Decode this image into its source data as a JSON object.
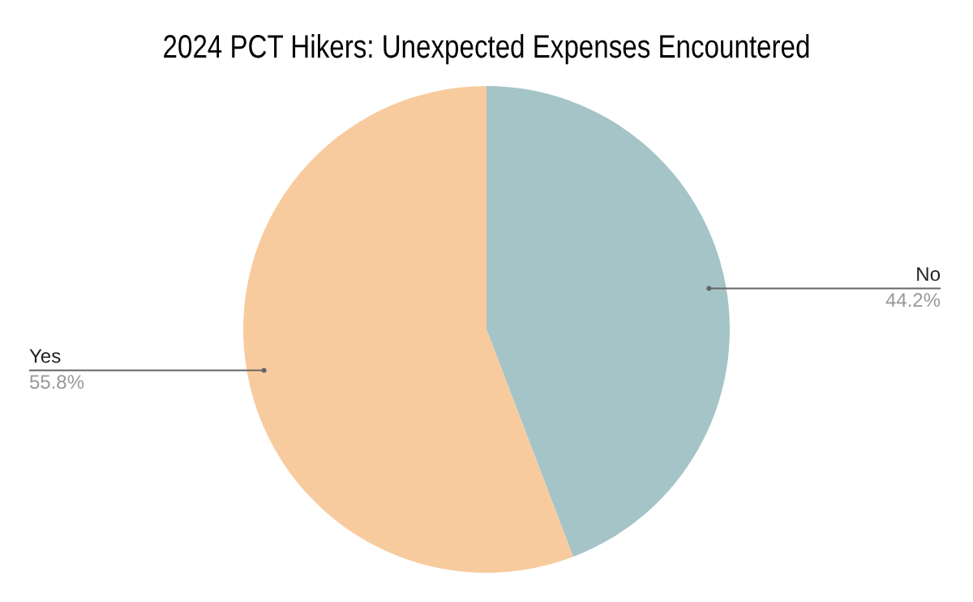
{
  "chart_data": {
    "type": "pie",
    "title": "2024 PCT Hikers: Unexpected Expenses Encountered",
    "categories": [
      "No",
      "Yes"
    ],
    "values": [
      44.2,
      55.8
    ],
    "colors": [
      "#a5c4c7",
      "#f8cb9e"
    ],
    "value_labels": [
      "44.2%",
      "55.8%"
    ],
    "legend": false
  }
}
